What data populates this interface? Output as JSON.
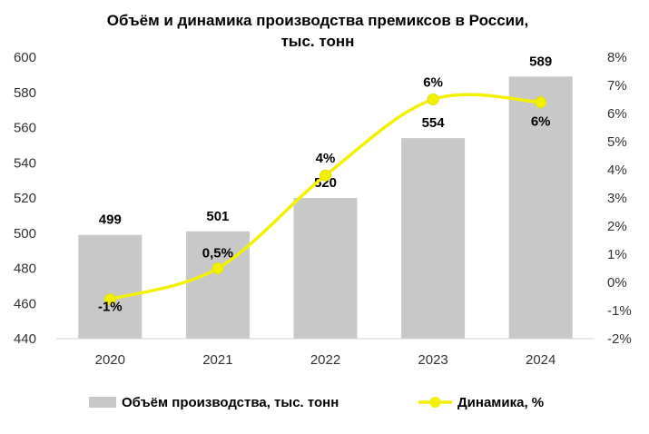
{
  "chart_data": {
    "type": "bar",
    "title": "Объём и динамика производства премиксов в России,",
    "subtitle": "тыс. тонн",
    "categories": [
      "2020",
      "2021",
      "2022",
      "2023",
      "2024"
    ],
    "series": [
      {
        "name": "Объём производства, тыс. тонн",
        "type": "bar",
        "axis": "left",
        "values": [
          499,
          501,
          520,
          554,
          589
        ],
        "labels": [
          "499",
          "501",
          "520",
          "554",
          "589"
        ],
        "color": "#c8c8c8"
      },
      {
        "name": "Динамика, %",
        "type": "line",
        "axis": "right",
        "values": [
          -0.6,
          0.5,
          3.8,
          6.5,
          6.4
        ],
        "labels": [
          "-1%",
          "0,5%",
          "4%",
          "6%",
          "6%"
        ],
        "color": "#f2f200"
      }
    ],
    "y_left": {
      "ylim": [
        440,
        600
      ],
      "ticks": [
        "440",
        "460",
        "480",
        "500",
        "520",
        "540",
        "560",
        "580",
        "600"
      ]
    },
    "y_right": {
      "ylim": [
        -2,
        8
      ],
      "ticks": [
        "-2%",
        "-1%",
        "0%",
        "1%",
        "2%",
        "3%",
        "4%",
        "5%",
        "6%",
        "7%",
        "8%"
      ]
    },
    "grid": false,
    "legend_position": "bottom"
  }
}
